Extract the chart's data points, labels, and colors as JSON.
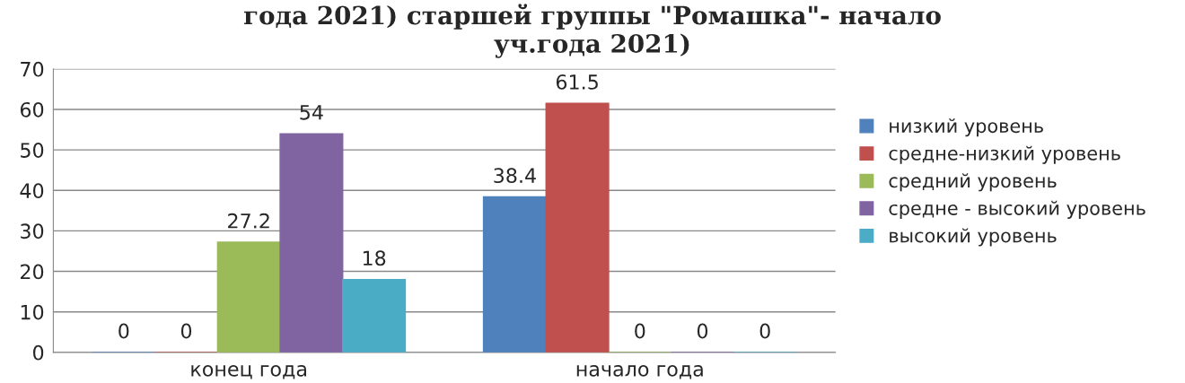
{
  "chart_data": {
    "type": "bar",
    "title": "года 2021) старшей группы \"Ромашка\"- начало\nуч.года 2021)",
    "categories": [
      "конец года",
      "начало года"
    ],
    "series": [
      {
        "name": "низкий уровень",
        "color": "#4f81bd",
        "values": [
          0,
          38.4
        ]
      },
      {
        "name": "средне-низкий уровень",
        "color": "#c0504d",
        "values": [
          0,
          61.5
        ]
      },
      {
        "name": "средний уровень",
        "color": "#9bbb59",
        "values": [
          27.2,
          0
        ]
      },
      {
        "name": "средне - высокий уровень",
        "color": "#8064a2",
        "values": [
          54,
          0
        ]
      },
      {
        "name": "высокий уровень",
        "color": "#4bacc6",
        "values": [
          18,
          0
        ]
      }
    ],
    "ylim": [
      0,
      70
    ],
    "yticks": [
      0,
      10,
      20,
      30,
      40,
      50,
      60,
      70
    ],
    "grid": "y",
    "legend": "right",
    "data_labels": true
  }
}
